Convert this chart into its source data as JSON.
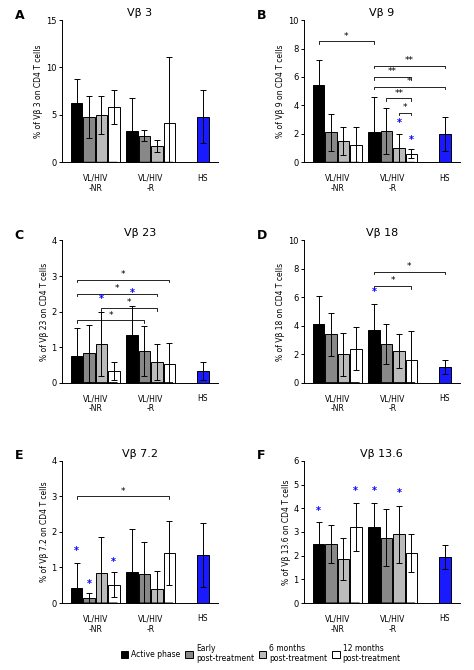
{
  "panels": [
    {
      "label": "A",
      "title": "Vβ 3",
      "ylabel": "% of Vβ 3 on CD4 T cells",
      "ylim": [
        0,
        15
      ],
      "yticks": [
        0,
        5,
        10,
        15
      ],
      "groups": [
        {
          "bars": [
            6.3,
            4.8,
            5.0,
            5.8
          ],
          "errors": [
            2.5,
            2.2,
            2.0,
            1.8
          ]
        },
        {
          "bars": [
            3.3,
            2.8,
            1.7,
            4.1
          ],
          "errors": [
            3.5,
            0.6,
            0.6,
            7.0
          ]
        },
        {
          "bars": [
            4.8
          ],
          "errors": [
            2.8
          ]
        }
      ],
      "significance": [],
      "blue_stars": []
    },
    {
      "label": "B",
      "title": "Vβ 9",
      "ylabel": "% of Vβ 9 on CD4 T cells",
      "ylim": [
        0,
        10
      ],
      "yticks": [
        0,
        2,
        4,
        6,
        8,
        10
      ],
      "groups": [
        {
          "bars": [
            5.4,
            2.1,
            1.5,
            1.2
          ],
          "errors": [
            1.8,
            1.3,
            1.0,
            1.3
          ]
        },
        {
          "bars": [
            2.1,
            2.2,
            1.0,
            0.6
          ],
          "errors": [
            2.5,
            1.6,
            1.0,
            0.3
          ]
        },
        {
          "bars": [
            2.0
          ],
          "errors": [
            1.2
          ]
        }
      ],
      "significance": [
        {
          "bi1": 0,
          "bi2": 4,
          "y": 8.5,
          "text": "*"
        },
        {
          "bi1": 4,
          "bi2": 8,
          "y": 6.8,
          "text": "**"
        },
        {
          "bi1": 4,
          "bi2": 7,
          "y": 6.0,
          "text": "**"
        },
        {
          "bi1": 4,
          "bi2": 8,
          "y": 5.3,
          "text": "*"
        },
        {
          "bi1": 5,
          "bi2": 7,
          "y": 4.5,
          "text": "**"
        },
        {
          "bi1": 6,
          "bi2": 7,
          "y": 3.5,
          "text": "*"
        }
      ],
      "blue_stars": [
        6,
        7
      ]
    },
    {
      "label": "C",
      "title": "Vβ 23",
      "ylabel": "% of Vβ 23 on CD4 T cells",
      "ylim": [
        0,
        4
      ],
      "yticks": [
        0,
        1,
        2,
        3,
        4
      ],
      "groups": [
        {
          "bars": [
            0.75,
            0.82,
            1.08,
            0.32
          ],
          "errors": [
            0.8,
            0.8,
            0.9,
            0.25
          ]
        },
        {
          "bars": [
            1.35,
            0.88,
            0.58,
            0.52
          ],
          "errors": [
            0.8,
            0.7,
            0.5,
            0.6
          ]
        },
        {
          "bars": [
            0.33
          ],
          "errors": [
            0.25
          ]
        }
      ],
      "significance": [
        {
          "bi1": 0,
          "bi2": 7,
          "y": 2.9,
          "text": "*"
        },
        {
          "bi1": 0,
          "bi2": 6,
          "y": 2.5,
          "text": "*"
        },
        {
          "bi1": 2,
          "bi2": 6,
          "y": 2.1,
          "text": "*"
        },
        {
          "bi1": 0,
          "bi2": 5,
          "y": 1.75,
          "text": "*"
        }
      ],
      "blue_stars": [
        2,
        4
      ]
    },
    {
      "label": "D",
      "title": "Vβ 18",
      "ylabel": "% of Vβ 18 on CD4 T cells",
      "ylim": [
        0,
        10
      ],
      "yticks": [
        0,
        2,
        4,
        6,
        8,
        10
      ],
      "groups": [
        {
          "bars": [
            4.1,
            3.4,
            2.0,
            2.4
          ],
          "errors": [
            2.0,
            1.5,
            1.5,
            1.5
          ]
        },
        {
          "bars": [
            3.7,
            2.7,
            2.2,
            1.6
          ],
          "errors": [
            1.8,
            1.4,
            1.2,
            2.0
          ]
        },
        {
          "bars": [
            1.1
          ],
          "errors": [
            0.5
          ]
        }
      ],
      "significance": [
        {
          "bi1": 4,
          "bi2": 8,
          "y": 7.8,
          "text": "*"
        },
        {
          "bi1": 4,
          "bi2": 7,
          "y": 6.8,
          "text": "*"
        }
      ],
      "blue_stars": [
        4
      ]
    },
    {
      "label": "E",
      "title": "Vβ 7.2",
      "ylabel": "% of Vβ 7.2 on CD4 T cells",
      "ylim": [
        0,
        4
      ],
      "yticks": [
        0,
        1,
        2,
        3,
        4
      ],
      "groups": [
        {
          "bars": [
            0.42,
            0.13,
            0.85,
            0.52
          ],
          "errors": [
            0.7,
            0.15,
            1.0,
            0.35
          ]
        },
        {
          "bars": [
            0.88,
            0.82,
            0.4,
            1.42
          ],
          "errors": [
            1.2,
            0.9,
            0.5,
            0.9
          ]
        },
        {
          "bars": [
            1.35
          ],
          "errors": [
            0.9
          ]
        }
      ],
      "significance": [
        {
          "bi1": 0,
          "bi2": 7,
          "y": 3.0,
          "text": "*"
        }
      ],
      "blue_stars": [
        0,
        1,
        3
      ]
    },
    {
      "label": "F",
      "title": "Vβ 13.6",
      "ylabel": "% of Vβ 13.6 on CD4 T cells",
      "ylim": [
        0,
        6
      ],
      "yticks": [
        0,
        1,
        2,
        3,
        4,
        5,
        6
      ],
      "groups": [
        {
          "bars": [
            2.5,
            2.5,
            1.85,
            3.2
          ],
          "errors": [
            0.9,
            0.8,
            0.9,
            1.0
          ]
        },
        {
          "bars": [
            3.2,
            2.75,
            2.9,
            2.1
          ],
          "errors": [
            1.0,
            1.2,
            1.2,
            0.8
          ]
        },
        {
          "bars": [
            1.95
          ],
          "errors": [
            0.5
          ]
        }
      ],
      "significance": [],
      "blue_stars": [
        0,
        3,
        4,
        6
      ]
    }
  ],
  "bar_colors": [
    "#000000",
    "#888888",
    "#bbbbbb",
    "#ffffff"
  ],
  "hs_color": "#1a1aff",
  "bar_width": 0.15,
  "figure_bg": "#ffffff"
}
